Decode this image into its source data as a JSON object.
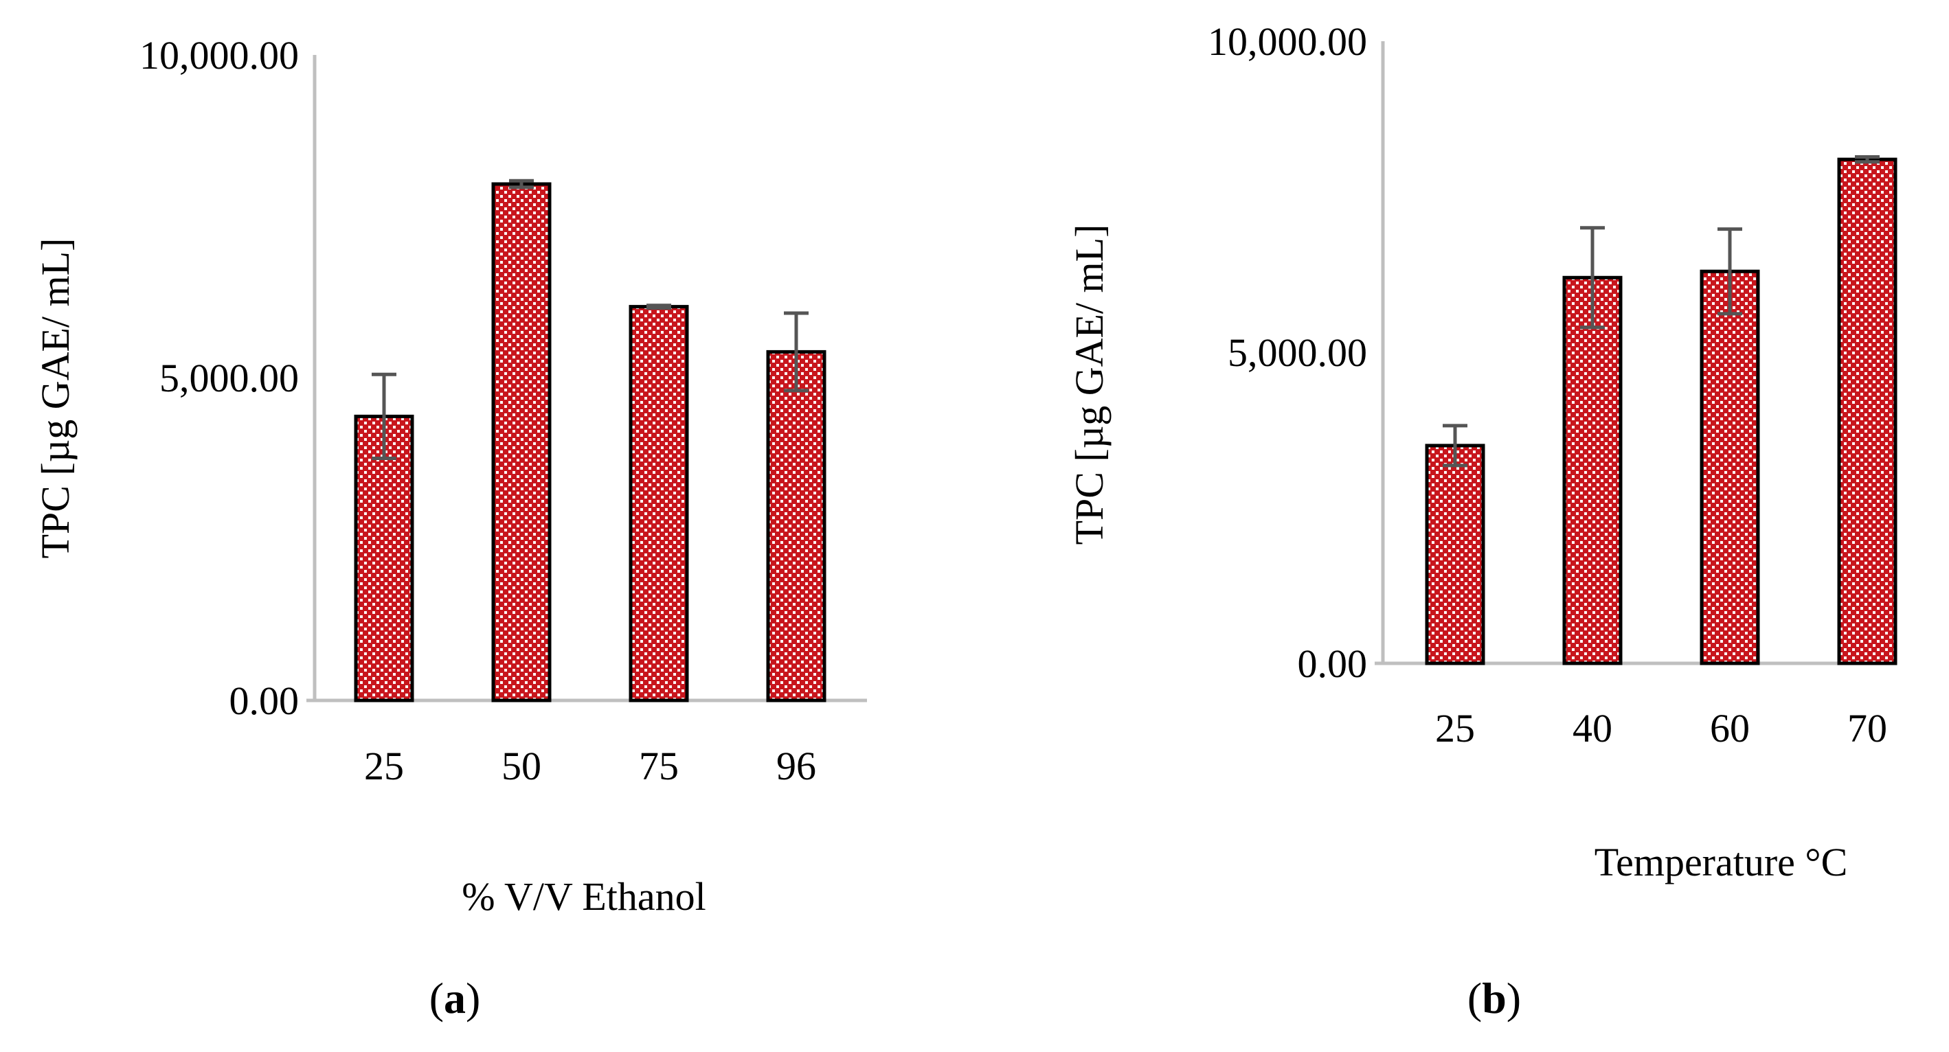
{
  "chart_data": [
    {
      "type": "bar",
      "panel_label": "a",
      "xlabel": "% V/V Ethanol",
      "ylabel": "TPC [µg GAE/ mL]",
      "categories": [
        "25",
        "50",
        "75",
        "96"
      ],
      "values": [
        4400,
        8000,
        6100,
        5400
      ],
      "error": [
        650,
        50,
        20,
        600
      ],
      "ylim": [
        0,
        10000
      ],
      "yticks": [
        0,
        5000,
        10000
      ],
      "ytick_labels": [
        "0.00",
        "5,000.00",
        "10,000.00"
      ],
      "grid": false,
      "bar_fill": "#c8161d",
      "bar_dot_color": "#ffffff",
      "bar_stroke": "#000000",
      "errorbar_color": "#555555",
      "axis_color": "#bfbfbf"
    },
    {
      "type": "bar",
      "panel_label": "b",
      "xlabel": "Temperature °C",
      "ylabel": "TPC [µg  GAE/ mL]",
      "categories": [
        "25",
        "40",
        "60",
        "70"
      ],
      "values": [
        3500,
        6200,
        6300,
        8100
      ],
      "error": [
        320,
        800,
        680,
        40
      ],
      "ylim": [
        0,
        10000
      ],
      "yticks": [
        0,
        5000,
        10000
      ],
      "ytick_labels": [
        "0.00",
        "5,000.00",
        "10,000.00"
      ],
      "grid": false,
      "bar_fill": "#c8161d",
      "bar_dot_color": "#ffffff",
      "bar_stroke": "#000000",
      "errorbar_color": "#555555",
      "axis_color": "#bfbfbf"
    }
  ]
}
